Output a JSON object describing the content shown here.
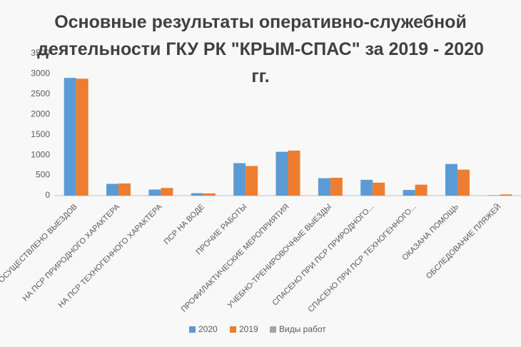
{
  "chart_data": {
    "type": "bar",
    "title": "Основные результаты оперативно-служебной деятельности ГКУ РК \"КРЫМ-СПАС\" за 2019 - 2020 гг.",
    "categories": [
      "ОСУЩЕСТВЛЕНО  ВЫЕЗДОВ",
      "НА ПСР ПРИРОДНОГО ХАРАКТЕРА",
      "НА ПСР ТЕХНОГЕННОГО ХАРАКТЕРА",
      "ПСР НА ВОДЕ",
      "ПРОЧИЕ РАБОТЫ",
      "ПРОФИЛАКТИЧЕСКИЕ МЕРОПРИЯТИЯ",
      "УЧЕБНО-ТРЕНИРОВОЧНЫЕ ВЫЕЗДЫ",
      "СПАСЕНО ПРИ ПСР ПРИРОДНОГО...",
      "СПАСЕНО ПРИ ПСР ТЕХНОГЕННОГО...",
      "ОКАЗАНА ПОМОЩЬ",
      "ОБСЛЕДОВАНИЕ ПЛЯЖЕЙ"
    ],
    "series": [
      {
        "name": "2020",
        "color": "#5b9bd5",
        "values": [
          2900,
          290,
          150,
          60,
          800,
          1080,
          430,
          390,
          140,
          780,
          10
        ]
      },
      {
        "name": "2019",
        "color": "#ed7d31",
        "values": [
          2880,
          300,
          190,
          55,
          730,
          1110,
          440,
          320,
          270,
          640,
          30
        ]
      },
      {
        "name": "Виды работ",
        "color": "#a5a5a5",
        "values": [
          null,
          null,
          null,
          null,
          null,
          null,
          null,
          null,
          null,
          null,
          null
        ]
      }
    ],
    "ylim": [
      0,
      3500
    ],
    "yticks": [
      0,
      500,
      1000,
      1500,
      2000,
      2500,
      3000,
      3500
    ],
    "grid": false
  }
}
